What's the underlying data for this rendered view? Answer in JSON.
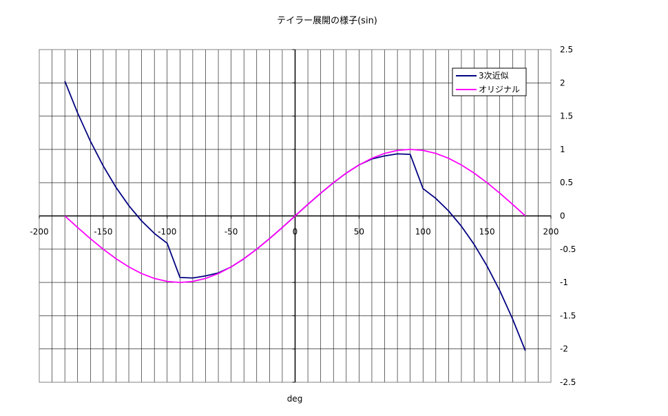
{
  "chart_data": {
    "type": "line",
    "title": "テイラー展開の様子(sin)",
    "xlabel": "deg",
    "ylabel": "",
    "xlim": [
      -200,
      200
    ],
    "ylim": [
      -2.5,
      2.5
    ],
    "x_ticks": [
      "-200",
      "-150",
      "-100",
      "-50",
      "0",
      "50",
      "100",
      "150",
      "200"
    ],
    "y_ticks": [
      "2.5",
      "2",
      "1.5",
      "1",
      "0.5",
      "0",
      "-0.5",
      "-1",
      "-1.5",
      "-2",
      "-2.5"
    ],
    "grid": true,
    "legend_position": "top-right",
    "series": [
      {
        "name": "3次近似",
        "color": "#000080",
        "x": [
          -180,
          -170,
          -160,
          -150,
          -140,
          -130,
          -120,
          -110,
          -100,
          -90,
          -80,
          -70,
          -60,
          -50,
          -40,
          -30,
          -20,
          -10,
          0,
          10,
          20,
          30,
          40,
          50,
          60,
          70,
          80,
          90,
          100,
          110,
          120,
          130,
          140,
          150,
          160,
          170,
          180
        ],
        "y": [
          2.026,
          1.547,
          1.123,
          0.751,
          0.429,
          0.155,
          -0.075,
          -0.263,
          -0.411,
          -0.925,
          -0.933,
          -0.902,
          -0.856,
          -0.767,
          -0.644,
          -0.499,
          -0.341,
          -0.174,
          0,
          0.174,
          0.341,
          0.499,
          0.644,
          0.767,
          0.856,
          0.902,
          0.933,
          0.925,
          0.411,
          0.263,
          0.075,
          -0.155,
          -0.429,
          -0.751,
          -1.123,
          -1.547,
          -2.026
        ]
      },
      {
        "name": "オリジナル",
        "color": "#FF00FF",
        "x": [
          -180,
          -170,
          -160,
          -150,
          -140,
          -130,
          -120,
          -110,
          -100,
          -90,
          -80,
          -70,
          -60,
          -50,
          -40,
          -30,
          -20,
          -10,
          0,
          10,
          20,
          30,
          40,
          50,
          60,
          70,
          80,
          90,
          100,
          110,
          120,
          130,
          140,
          150,
          160,
          170,
          180
        ],
        "y": [
          0,
          -0.174,
          -0.342,
          -0.5,
          -0.643,
          -0.766,
          -0.866,
          -0.94,
          -0.985,
          -1,
          -0.985,
          -0.94,
          -0.866,
          -0.766,
          -0.643,
          -0.5,
          -0.342,
          -0.174,
          0,
          0.174,
          0.342,
          0.5,
          0.643,
          0.766,
          0.866,
          0.94,
          0.985,
          1,
          0.985,
          0.94,
          0.866,
          0.766,
          0.643,
          0.5,
          0.342,
          0.174,
          0
        ]
      }
    ]
  }
}
